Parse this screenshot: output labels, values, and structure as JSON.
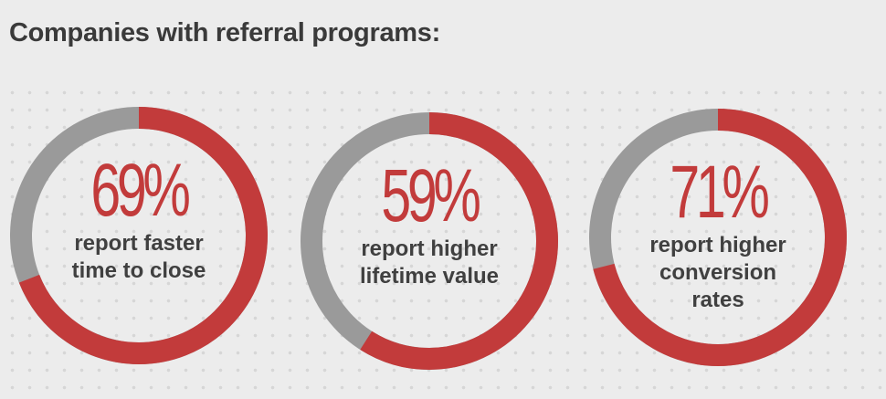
{
  "title": "Companies with referral programs:",
  "colors": {
    "primary": "#c23b3b",
    "remainder": "#9a9a9a",
    "text": "#404040",
    "background": "#ececec"
  },
  "chart_data": [
    {
      "type": "pie",
      "value": 69,
      "display_value": "69%",
      "label_lines": [
        "report faster",
        "time to close"
      ]
    },
    {
      "type": "pie",
      "value": 59,
      "display_value": "59%",
      "label_lines": [
        "report higher",
        "lifetime value"
      ]
    },
    {
      "type": "pie",
      "value": 71,
      "display_value": "71%",
      "label_lines": [
        "report higher",
        "conversion",
        "rates"
      ]
    }
  ]
}
